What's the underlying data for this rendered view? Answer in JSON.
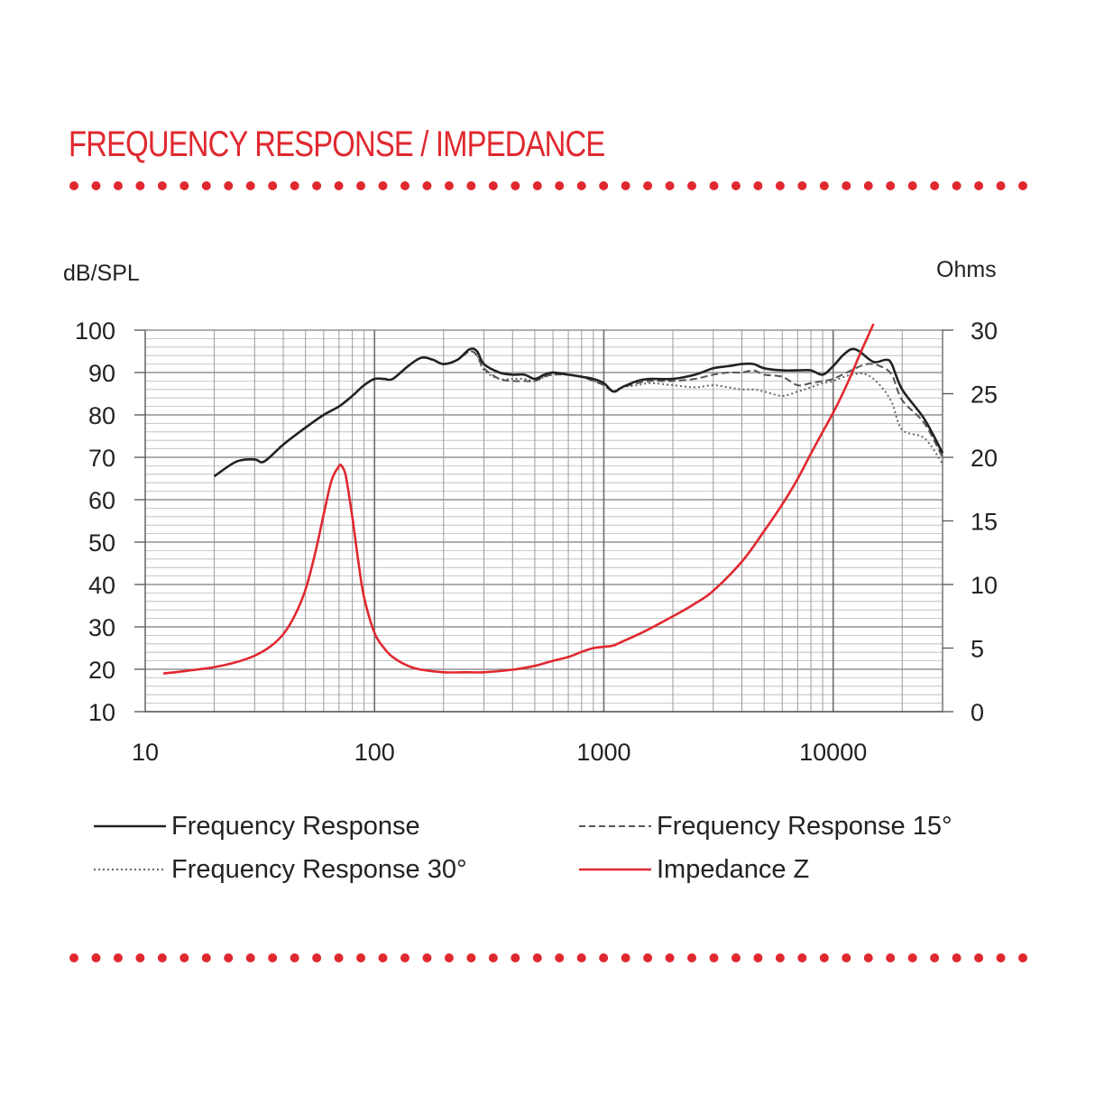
{
  "title": "FREQUENCY RESPONSE / IMPEDANCE",
  "colors": {
    "accent": "#e0282f",
    "line": "#222222",
    "grid": "#9a9a9a"
  },
  "chart_data": {
    "type": "line",
    "xscale": "log",
    "xlim": [
      10,
      30000
    ],
    "xticks": [
      10,
      100,
      1000,
      10000
    ],
    "xtick_labels": [
      "10",
      "100",
      "1000",
      "10000"
    ],
    "y_left": {
      "label": "dB/SPL",
      "lim": [
        10,
        100
      ],
      "ticks": [
        "100",
        "90",
        "80",
        "70",
        "60",
        "50",
        "40",
        "30",
        "20",
        "10"
      ]
    },
    "y_right": {
      "label": "Ohms",
      "lim": [
        0,
        30
      ],
      "ticks": [
        "30",
        "25",
        "20",
        "15",
        "10",
        "5",
        "0"
      ]
    },
    "series": [
      {
        "name": "Frequency Response",
        "axis": "left",
        "style": "solid",
        "color": "#222222",
        "x": [
          20,
          25,
          30,
          33,
          40,
          50,
          60,
          70,
          80,
          90,
          100,
          110,
          120,
          140,
          160,
          180,
          200,
          230,
          260,
          280,
          300,
          350,
          400,
          450,
          500,
          550,
          600,
          700,
          800,
          900,
          1000,
          1100,
          1200,
          1400,
          1600,
          2000,
          2500,
          3000,
          3500,
          4000,
          4500,
          5000,
          6000,
          7000,
          8000,
          9000,
          10000,
          11000,
          12000,
          13000,
          15000,
          17000,
          18000,
          20000,
          25000,
          30000
        ],
        "y": [
          65.5,
          69,
          69.5,
          69,
          73,
          77,
          80,
          82,
          84.5,
          87,
          88.5,
          88.5,
          88.5,
          91.5,
          93.5,
          93,
          92,
          93,
          95.5,
          95,
          92,
          90,
          89.5,
          89.5,
          88.5,
          89.5,
          90,
          89.5,
          89,
          88.5,
          87.5,
          85.5,
          86.5,
          88,
          88.5,
          88.5,
          89.5,
          91,
          91.5,
          92,
          92,
          91,
          90.5,
          90.5,
          90.5,
          89.5,
          91.5,
          94,
          95.5,
          95,
          92.5,
          93,
          92,
          86,
          79,
          71
        ]
      },
      {
        "name": "Frequency Response 15°",
        "axis": "left",
        "style": "dashed",
        "color": "#555555",
        "x": [
          20,
          25,
          30,
          33,
          40,
          50,
          60,
          70,
          80,
          90,
          100,
          110,
          120,
          140,
          160,
          180,
          200,
          230,
          260,
          280,
          300,
          350,
          400,
          450,
          500,
          550,
          600,
          700,
          800,
          900,
          1000,
          1100,
          1200,
          1400,
          1600,
          2000,
          2500,
          3000,
          3500,
          4000,
          4500,
          5000,
          6000,
          7000,
          8000,
          9000,
          10000,
          12000,
          14000,
          16000,
          18000,
          20000,
          25000,
          30000
        ],
        "y": [
          65.5,
          69,
          69.5,
          69,
          73,
          77,
          80,
          82,
          84.5,
          87,
          88.5,
          88.5,
          88.5,
          91.5,
          93.5,
          93,
          92,
          93,
          95,
          94,
          91,
          88.5,
          88,
          88,
          88,
          89,
          89.5,
          89.5,
          89,
          88,
          87,
          85.5,
          86.5,
          87.5,
          88,
          88,
          88.5,
          89.5,
          90,
          90,
          90.5,
          89.5,
          89,
          87,
          87.5,
          88,
          88.5,
          90.5,
          92,
          91.5,
          89.5,
          83.5,
          78,
          70
        ]
      },
      {
        "name": "Frequency Response 30°",
        "axis": "left",
        "style": "dotted",
        "color": "#666666",
        "x": [
          20,
          25,
          30,
          33,
          40,
          50,
          60,
          70,
          80,
          90,
          100,
          110,
          120,
          140,
          160,
          180,
          200,
          230,
          260,
          280,
          300,
          350,
          400,
          450,
          500,
          550,
          600,
          700,
          800,
          900,
          1000,
          1100,
          1200,
          1400,
          1600,
          2000,
          2500,
          3000,
          3500,
          4000,
          4500,
          5000,
          6000,
          7000,
          8000,
          9000,
          10000,
          12000,
          14000,
          16000,
          18000,
          20000,
          25000,
          30000
        ],
        "y": [
          65.5,
          69,
          69.5,
          69,
          73,
          77,
          80,
          82,
          84.5,
          87,
          88.5,
          88.5,
          88.5,
          91.5,
          93.5,
          93,
          92,
          93,
          95,
          94,
          90.5,
          88.5,
          88.5,
          88.5,
          88,
          89,
          89.5,
          89.5,
          89,
          88,
          87,
          85.5,
          86.5,
          87,
          87.5,
          87,
          86.5,
          87,
          86.5,
          86,
          86,
          85.5,
          84.5,
          85.5,
          86.5,
          87.5,
          88,
          89.5,
          89.5,
          87,
          83,
          76.5,
          74.5,
          68.5
        ]
      },
      {
        "name": "Impedance Z",
        "axis": "right",
        "style": "solid",
        "color": "#e0282f",
        "x": [
          12,
          15,
          20,
          25,
          30,
          35,
          40,
          45,
          50,
          55,
          60,
          65,
          70,
          72,
          75,
          80,
          85,
          90,
          100,
          110,
          120,
          140,
          160,
          200,
          250,
          300,
          400,
          500,
          600,
          700,
          800,
          900,
          1000,
          1100,
          1200,
          1500,
          2000,
          2500,
          3000,
          4000,
          5000,
          6000,
          7000,
          8000,
          9000,
          10000,
          11000,
          12000,
          13000,
          14000,
          15000
        ],
        "y": [
          3,
          3.2,
          3.5,
          3.9,
          4.4,
          5.1,
          6.1,
          7.6,
          9.6,
          12.4,
          15.5,
          18.2,
          19.3,
          19.3,
          18.5,
          15.3,
          11.8,
          9,
          6.2,
          5,
          4.3,
          3.6,
          3.3,
          3.1,
          3.1,
          3.1,
          3.3,
          3.6,
          4,
          4.3,
          4.7,
          5,
          5.1,
          5.2,
          5.5,
          6.3,
          7.5,
          8.5,
          9.5,
          11.8,
          14.2,
          16.3,
          18.3,
          20.3,
          22,
          23.5,
          25,
          26.5,
          28,
          29.3,
          30.5
        ]
      }
    ],
    "legend": {
      "placement": "bottom",
      "items": [
        "Frequency Response",
        "Frequency Response 15°",
        "Frequency Response 30°",
        "Impedance Z"
      ]
    }
  }
}
